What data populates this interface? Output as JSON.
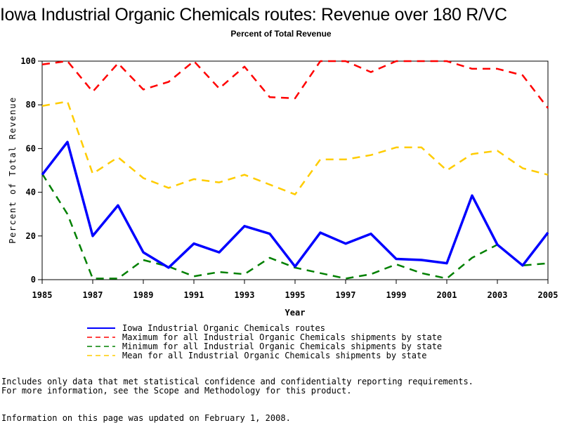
{
  "chart_data": {
    "type": "line",
    "title": "Iowa Industrial Organic Chemicals routes: Revenue over 180 R/VC",
    "subtitle": "Percent of Total Revenue",
    "xlabel": "Year",
    "ylabel": "Percent of Total Revenue",
    "xlim": [
      1985,
      2005
    ],
    "ylim": [
      0,
      100
    ],
    "x_ticks": [
      1985,
      1987,
      1989,
      1991,
      1993,
      1995,
      1997,
      1999,
      2001,
      2003,
      2005
    ],
    "y_ticks": [
      0,
      20,
      40,
      60,
      80,
      100
    ],
    "x": [
      1985,
      1986,
      1987,
      1988,
      1989,
      1990,
      1991,
      1992,
      1993,
      1994,
      1995,
      1996,
      1997,
      1998,
      1999,
      2000,
      2001,
      2002,
      2003,
      2004,
      2005
    ],
    "series": [
      {
        "name": "Iowa Industrial Organic Chemicals routes",
        "color": "#0000ff",
        "style": "solid",
        "values": [
          48,
          63,
          20,
          34,
          12.5,
          5.5,
          16.5,
          12.5,
          24.5,
          21,
          6,
          21.5,
          16.5,
          21,
          9.5,
          9,
          7.5,
          38.5,
          16,
          6.5,
          21.5
        ]
      },
      {
        "name": "Maximum for all Industrial Organic Chemicals shipments by state",
        "color": "#ff0000",
        "style": "dashed",
        "values": [
          98.5,
          100,
          86,
          99,
          87,
          90.5,
          100,
          87.5,
          97.5,
          83.5,
          83,
          100,
          100,
          95,
          100,
          100,
          100,
          96.5,
          96.5,
          93.5,
          78.5
        ]
      },
      {
        "name": "Minimum for all Industrial Organic Chemicals shipments by state",
        "color": "#008000",
        "style": "dashed",
        "values": [
          48.5,
          30,
          0.5,
          0.5,
          9,
          6,
          1.5,
          3.5,
          2.5,
          10,
          5.5,
          3,
          0.5,
          2.5,
          7,
          3,
          0.5,
          10,
          16,
          6.5,
          7.5
        ]
      },
      {
        "name": "Mean for all Industrial Organic Chemicals shipments by state",
        "color": "#ffcc00",
        "style": "dashed",
        "values": [
          79.5,
          81.5,
          48.5,
          56,
          46.5,
          42,
          46,
          44.5,
          48,
          43.5,
          39,
          55,
          55,
          57,
          60.5,
          60.5,
          50,
          57.5,
          59,
          51,
          48
        ]
      }
    ],
    "legend_position": "bottom",
    "grid": false
  },
  "footnotes": [
    "Includes only data that met statistical confidence and confidentialty reporting requirements.",
    "For more information, see the Scope and Methodology for this product.",
    "Information on this page was updated on February 1, 2008."
  ]
}
